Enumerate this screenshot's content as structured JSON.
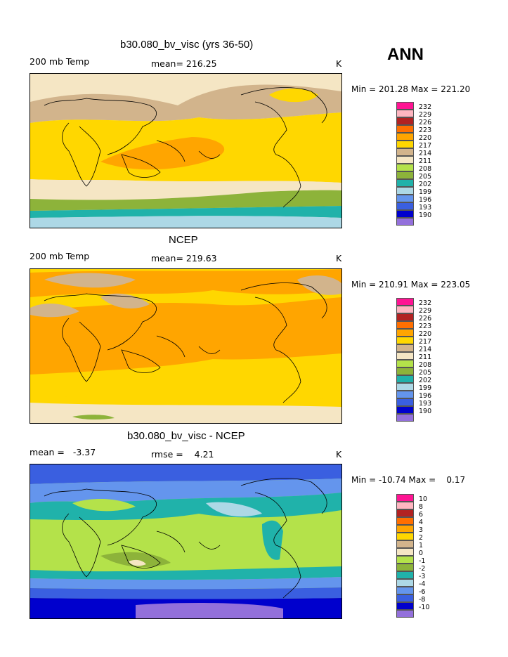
{
  "season": "ANN",
  "colors": {
    "temp_scale": [
      "#9370DB",
      "#0000CD",
      "#3A5FE0",
      "#6495ED",
      "#ADD8E6",
      "#20B2AA",
      "#8DB33A",
      "#B4E24A",
      "#F5E6C4",
      "#D2B48C",
      "#FFD700",
      "#FFA500",
      "#FF6F00",
      "#B22222",
      "#FFB6C1",
      "#FF1493"
    ],
    "diff_scale": [
      "#9370DB",
      "#0000CD",
      "#3A5FE0",
      "#6495ED",
      "#ADD8E6",
      "#20B2AA",
      "#8DB33A",
      "#B4E24A",
      "#F5E6C4",
      "#D2B48C",
      "#FFD700",
      "#FFA500",
      "#FF6F00",
      "#B22222",
      "#FFB6C1",
      "#FF1493"
    ]
  },
  "panels": [
    {
      "title": "b30.080_bv_visc (yrs 36-50)",
      "left_label": "200 mb Temp",
      "center_label": "mean= 216.25",
      "unit": "K",
      "minmax": "Min = 201.28 Max = 221.20",
      "legend_labels": [
        "232",
        "229",
        "226",
        "223",
        "220",
        "217",
        "214",
        "211",
        "208",
        "205",
        "202",
        "199",
        "196",
        "193",
        "190"
      ],
      "scale": "temp",
      "field": "model"
    },
    {
      "title": "NCEP",
      "left_label": "200 mb Temp",
      "center_label": "mean= 219.63",
      "unit": "K",
      "minmax": "Min = 210.91 Max = 223.05",
      "legend_labels": [
        "232",
        "229",
        "226",
        "223",
        "220",
        "217",
        "214",
        "211",
        "208",
        "205",
        "202",
        "199",
        "196",
        "193",
        "190"
      ],
      "scale": "temp",
      "field": "obs"
    },
    {
      "title": "b30.080_bv_visc - NCEP",
      "left_label": "mean =   -3.37",
      "center_label": "rmse =    4.21",
      "unit": "K",
      "minmax": "Min = -10.74 Max =    0.17",
      "legend_labels": [
        "10",
        "8",
        "6",
        "4",
        "3",
        "2",
        "1",
        "0",
        "-1",
        "-2",
        "-3",
        "-4",
        "-6",
        "-8",
        "-10"
      ],
      "scale": "diff",
      "field": "diff"
    }
  ]
}
